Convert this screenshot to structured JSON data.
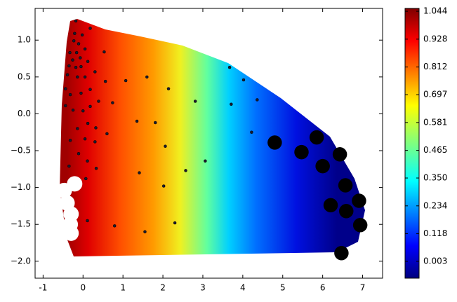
{
  "chart_data": {
    "type": "scatter",
    "xlim": [
      -1.2,
      7.5
    ],
    "xticks": [
      -1,
      0,
      1,
      2,
      3,
      4,
      5,
      6,
      7
    ],
    "ylim": [
      -2.23,
      1.43
    ],
    "yticks": [
      {
        "value": 1.0,
        "label": "1.0"
      },
      {
        "value": 0.5,
        "label": "0.5"
      },
      {
        "value": 0.0,
        "label": "0.0"
      },
      {
        "value": -0.5,
        "label": "−0.5"
      },
      {
        "value": -1.0,
        "label": "−1.0"
      },
      {
        "value": -1.5,
        "label": "−1.5"
      },
      {
        "value": -2.0,
        "label": "−2.0"
      }
    ],
    "series": [
      {
        "color": "#1a1a2e",
        "marker_size": 2,
        "x": [
          -0.18,
          -0.21,
          -0.02,
          0.18,
          -0.23,
          -0.11,
          -0.33,
          -0.16,
          -0.26,
          -0.07,
          0.05,
          0.12,
          -0.05,
          -0.18,
          -0.35,
          -0.39,
          -0.14,
          0.05,
          -0.44,
          -0.32,
          -0.05,
          0.18,
          0.3,
          0.53,
          0.56,
          -0.44,
          -0.25,
          0.0,
          0.18,
          0.39,
          0.74,
          1.07,
          1.6,
          2.14,
          2.81,
          3.67,
          4.02,
          4.36,
          3.71,
          4.22,
          0.12,
          0.32,
          0.6,
          1.35,
          1.81,
          -0.14,
          -0.32,
          0.05,
          0.3,
          -0.11,
          0.11,
          -0.35,
          0.33,
          2.06,
          3.06,
          2.57,
          1.41,
          0.07,
          2.02,
          0.11,
          0.79,
          1.55,
          2.3
        ],
        "values": [
          1.26,
          1.09,
          1.07,
          1.16,
          0.99,
          0.95,
          0.83,
          0.83,
          0.73,
          0.76,
          0.88,
          0.71,
          0.64,
          0.63,
          0.65,
          0.53,
          0.5,
          0.5,
          0.34,
          0.26,
          0.28,
          0.33,
          0.57,
          0.84,
          0.44,
          0.11,
          0.05,
          0.04,
          0.1,
          0.17,
          0.15,
          0.45,
          0.5,
          0.34,
          0.17,
          0.63,
          0.46,
          0.19,
          0.13,
          -0.25,
          -0.13,
          -0.19,
          -0.27,
          -0.1,
          -0.12,
          -0.2,
          -0.36,
          -0.34,
          -0.38,
          -0.54,
          -0.64,
          -0.71,
          -0.74,
          -0.44,
          -0.64,
          -0.77,
          -0.8,
          -0.88,
          -0.98,
          -1.45,
          -1.52,
          -1.6,
          -1.48
        ]
      },
      {
        "color": "#000000",
        "marker_size": 10,
        "x": [
          4.8,
          5.47,
          5.85,
          6.0,
          6.43,
          6.57,
          6.2,
          6.59,
          6.91,
          6.94,
          6.47
        ],
        "values": [
          -0.39,
          -0.52,
          -0.32,
          -0.71,
          -0.55,
          -0.97,
          -1.24,
          -1.32,
          -1.18,
          -1.51,
          -1.89
        ]
      },
      {
        "color": "#ffffff",
        "marker_size": 11,
        "x": [
          -0.21,
          -0.47,
          -0.4,
          -0.3,
          -0.3,
          -0.32
        ],
        "values": [
          -0.95,
          -1.04,
          -1.21,
          -1.36,
          -1.62,
          -1.5
        ]
      }
    ],
    "colorbar": {
      "colormap": "jet",
      "lim": [
        -0.067,
        1.056
      ],
      "ticks": [
        {
          "value": 0.003,
          "label": "0.003"
        },
        {
          "value": 0.118,
          "label": "0.118"
        },
        {
          "value": 0.234,
          "label": "0.234"
        },
        {
          "value": 0.35,
          "label": "0.350"
        },
        {
          "value": 0.465,
          "label": "0.465"
        },
        {
          "value": 0.581,
          "label": "0.581"
        },
        {
          "value": 0.697,
          "label": "0.697"
        },
        {
          "value": 0.812,
          "label": "0.812"
        },
        {
          "value": 0.928,
          "label": "0.928"
        },
        {
          "value": 1.044,
          "label": "1.044"
        }
      ]
    }
  }
}
